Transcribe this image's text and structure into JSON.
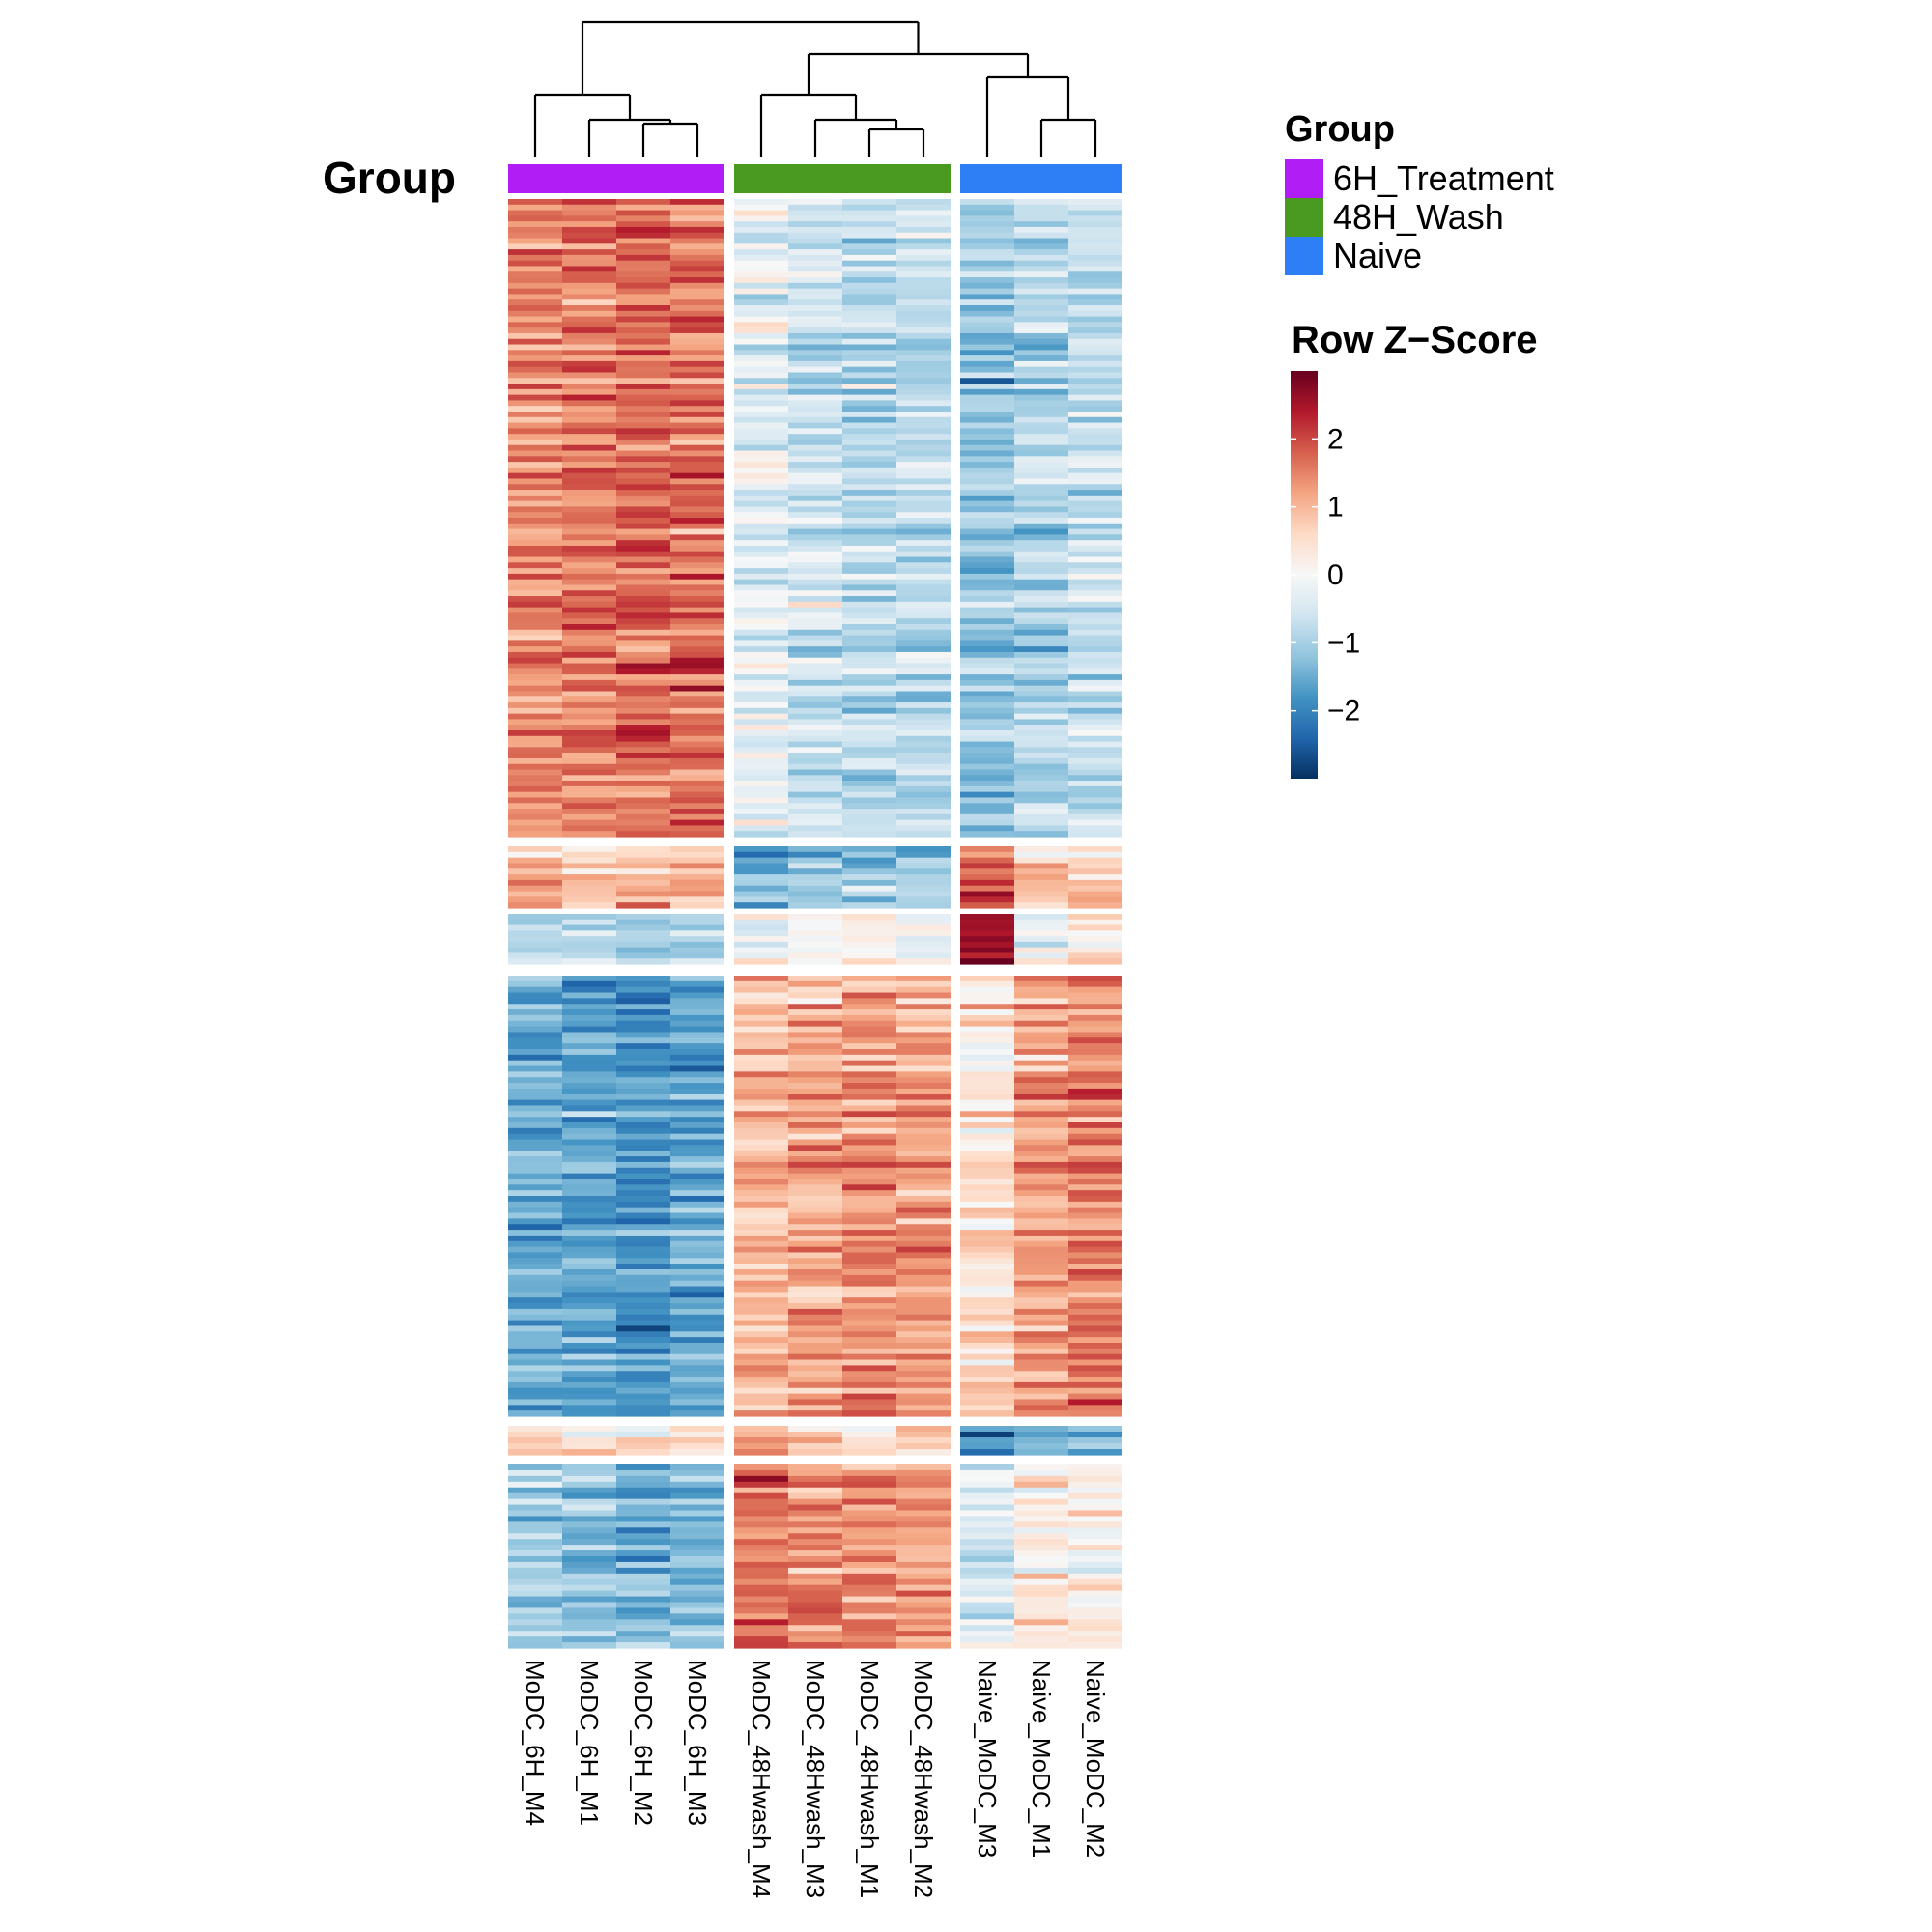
{
  "chart_data": {
    "type": "heatmap",
    "column_annotation_title": "Group",
    "columns": [
      {
        "name": "MoDC_6H_M4",
        "group": "6H_Treatment"
      },
      {
        "name": "MoDC_6H_M1",
        "group": "6H_Treatment"
      },
      {
        "name": "MoDC_6H_M2",
        "group": "6H_Treatment"
      },
      {
        "name": "MoDC_6H_M3",
        "group": "6H_Treatment"
      },
      {
        "name": "MoDC_48Hwash_M4",
        "group": "48H_Wash"
      },
      {
        "name": "MoDC_48Hwash_M3",
        "group": "48H_Wash"
      },
      {
        "name": "MoDC_48Hwash_M1",
        "group": "48H_Wash"
      },
      {
        "name": "MoDC_48Hwash_M2",
        "group": "48H_Wash"
      },
      {
        "name": "Naive_MoDC_M3",
        "group": "Naive"
      },
      {
        "name": "Naive_MoDC_M1",
        "group": "Naive"
      },
      {
        "name": "Naive_MoDC_M2",
        "group": "Naive"
      }
    ],
    "groups": [
      {
        "name": "6H_Treatment",
        "color": "#b11ef5"
      },
      {
        "name": "48H_Wash",
        "color": "#4a9a22"
      },
      {
        "name": "Naive",
        "color": "#2e7ff5"
      }
    ],
    "row_clusters": [
      {
        "cluster": 1,
        "rows": 114,
        "mean_z": [
          1.4,
          1.6,
          1.7,
          1.6,
          -0.3,
          -0.6,
          -0.8,
          -0.7,
          -1.2,
          -0.9,
          -0.7
        ]
      },
      {
        "cluster": 2,
        "rows": 11,
        "mean_z": [
          1.0,
          0.8,
          1.0,
          1.0,
          -1.4,
          -1.2,
          -1.1,
          -1.2,
          1.8,
          0.8,
          0.9
        ]
      },
      {
        "cluster": 3,
        "rows": 9,
        "mean_z": [
          -0.9,
          -0.8,
          -1.0,
          -1.0,
          -0.4,
          0.0,
          0.0,
          -0.1,
          2.6,
          -0.2,
          0.3
        ]
      },
      {
        "cluster": 4,
        "rows": 78,
        "mean_z": [
          -1.5,
          -1.6,
          -1.8,
          -1.6,
          1.0,
          1.2,
          1.4,
          1.3,
          0.6,
          1.3,
          1.6
        ]
      },
      {
        "cluster": 5,
        "rows": 5,
        "mean_z": [
          0.8,
          0.3,
          0.3,
          0.3,
          1.2,
          0.6,
          0.4,
          0.7,
          -2.0,
          -1.5,
          -1.4
        ]
      },
      {
        "cluster": 6,
        "rows": 32,
        "mean_z": [
          -1.0,
          -1.3,
          -1.4,
          -1.3,
          1.8,
          1.5,
          1.4,
          1.3,
          -0.4,
          0.3,
          0.2
        ]
      }
    ],
    "color_scale": {
      "title": "Row Z−Score",
      "range": [
        -3,
        3
      ],
      "ticks": [
        2,
        1,
        0,
        -1,
        -2
      ],
      "tick_labels": [
        "2",
        "1",
        "0",
        "−1",
        "−2"
      ],
      "colors": [
        "#053061",
        "#2166ac",
        "#4393c3",
        "#92c5de",
        "#d1e5f0",
        "#f7f7f7",
        "#fddbc7",
        "#f4a582",
        "#d6604d",
        "#b2182b",
        "#67001f"
      ]
    },
    "legend_title": "Group",
    "dendrogram": "columns clustered into 6H_Treatment, 48H_Wash and Naive branches"
  }
}
